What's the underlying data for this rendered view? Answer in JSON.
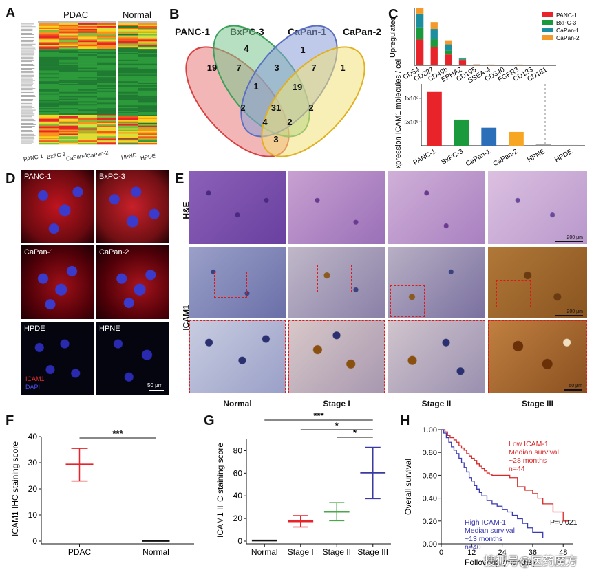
{
  "panels": {
    "A": {
      "letter": "A",
      "group_labels": [
        "PDAC",
        "Normal"
      ],
      "cell_lines": [
        "PANC-1",
        "BxPC-3",
        "CaPan-1",
        "CaPan-2",
        "HPNE",
        "HPDE"
      ]
    },
    "B": {
      "letter": "B",
      "sets": [
        "PANC-1",
        "BxPC-3",
        "CaPan-1",
        "CaPan-2"
      ],
      "set_colors": [
        "#e87a7a",
        "#7cc48e",
        "#8a9fd8",
        "#f2e27a"
      ],
      "region_counts": [
        "19",
        "4",
        "1",
        "1",
        "7",
        "3",
        "7",
        "1",
        "19",
        "2",
        "31",
        "2",
        "4",
        "2",
        "3"
      ]
    },
    "C": {
      "letter": "C",
      "chart_data": [
        {
          "type": "bar",
          "stacked": true,
          "ylabel": "Upregulated",
          "categories": [
            "CD54",
            "CD227",
            "CD49b",
            "EPHA2",
            "CD195",
            "SSEA-4",
            "CD340",
            "FGFR3",
            "CD133",
            "CD181"
          ],
          "series": [
            {
              "name": "PANC-1",
              "color": "#e8232a",
              "values": [
                95,
                66,
                40,
                20,
                1,
                0,
                1,
                0,
                0,
                0
              ]
            },
            {
              "name": "BxPC-3",
              "color": "#1a9a3c",
              "values": [
                45,
                30,
                15,
                2,
                1,
                1,
                0,
                1,
                1,
                0
              ]
            },
            {
              "name": "CaPan-1",
              "color": "#1b8fa0",
              "values": [
                50,
                38,
                22,
                3,
                1,
                1,
                1,
                1,
                1,
                0
              ]
            },
            {
              "name": "CaPan-2",
              "color": "#f39a2b",
              "values": [
                20,
                25,
                15,
                3,
                1,
                1,
                0,
                1,
                0,
                0
              ]
            }
          ],
          "legend_position": "top-right"
        },
        {
          "type": "bar",
          "ylabel": "Expression ICAM1 molecules / cell",
          "categories": [
            "PANC-1",
            "BxPC-3",
            "CaPan-1",
            "CaPan-2",
            "HPNE",
            "HPDE"
          ],
          "values": [
            1130000,
            550000,
            380000,
            290000,
            25000,
            15000
          ],
          "colors": [
            "#e8232a",
            "#1a9a3c",
            "#2b6fb8",
            "#f6a623",
            "#8c8c8c",
            "#8c8c8c"
          ],
          "yticks": [
            "5x10⁵",
            "1x10⁶"
          ],
          "ylim": [
            0,
            1300000
          ]
        }
      ]
    },
    "D": {
      "letter": "D",
      "images": [
        "PANC-1",
        "BxPC-3",
        "CaPan-1",
        "CaPan-2",
        "HPDE",
        "HPNE"
      ],
      "legend_icam": "ICAM1",
      "legend_dapi": "DAPI",
      "scale": "50 μm"
    },
    "E": {
      "letter": "E",
      "row_labels": [
        "H&E",
        "ICAM1"
      ],
      "stages": [
        "Normal",
        "Stage I",
        "Stage II",
        "Stage III"
      ],
      "scale_he": "200 μm",
      "scale_icam": "200 μm",
      "scale_zoom": "50 μm"
    },
    "F": {
      "letter": "F",
      "chart_data": {
        "type": "scatter",
        "ylabel": "ICAM1 IHC staining score",
        "categories": [
          "PDAC",
          "Normal"
        ],
        "mean": [
          29.3,
          0.1
        ],
        "upper": [
          35.5,
          0.1
        ],
        "lower": [
          23.0,
          0.1
        ],
        "colors": [
          "#e8232a",
          "#111111"
        ],
        "ylim": [
          0,
          40
        ],
        "yticks": [
          0,
          10,
          20,
          30,
          40
        ],
        "significance": "***"
      }
    },
    "G": {
      "letter": "G",
      "chart_data": {
        "type": "scatter",
        "ylabel": "ICAM1 IHC staining score",
        "categories": [
          "Normal",
          "Stage I",
          "Stage II",
          "Stage III"
        ],
        "mean": [
          0.5,
          17.5,
          26.0,
          60.5
        ],
        "upper": [
          0.5,
          22.5,
          34.0,
          83.0
        ],
        "lower": [
          0.5,
          12.5,
          18.0,
          37.5
        ],
        "colors": [
          "#111111",
          "#e8232a",
          "#4aa84a",
          "#3a3aa0"
        ],
        "ylim": [
          0,
          90
        ],
        "yticks": [
          0,
          20,
          40,
          60,
          80
        ],
        "significance": [
          "***",
          "*",
          "*"
        ]
      }
    },
    "H": {
      "letter": "H",
      "chart_data": {
        "type": "line",
        "ylabel": "Overall survival",
        "xlabel": "Follow-up (months)",
        "xlim": [
          0,
          52
        ],
        "ylim": [
          0,
          1.0
        ],
        "xticks": [
          0,
          12,
          24,
          36,
          48
        ],
        "yticks": [
          "0.00",
          "0.20",
          "0.40",
          "0.60",
          "0.80",
          "1.00"
        ],
        "series": [
          {
            "name": "Low ICAM-1",
            "color": "#d62a2a",
            "x": [
              0,
              1.5,
              2.5,
              3.5,
              5,
              6,
              7,
              8,
              9,
              10,
              11,
              12,
              13,
              14,
              15,
              16,
              17,
              18,
              19,
              20,
              22,
              24,
              27,
              30,
              33,
              36,
              38,
              40,
              44,
              48,
              50
            ],
            "y": [
              1.0,
              0.98,
              0.95,
              0.93,
              0.91,
              0.89,
              0.86,
              0.84,
              0.82,
              0.79,
              0.77,
              0.75,
              0.73,
              0.7,
              0.68,
              0.66,
              0.64,
              0.62,
              0.61,
              0.6,
              0.6,
              0.6,
              0.58,
              0.5,
              0.47,
              0.44,
              0.4,
              0.35,
              0.28,
              0.2,
              0.2
            ]
          },
          {
            "name": "High ICAM-1",
            "color": "#3a3ab0",
            "x": [
              0,
              1,
              2,
              3,
              4,
              5,
              6,
              7,
              8,
              9,
              10,
              11,
              12,
              13,
              14,
              15,
              16,
              18,
              20,
              22,
              24,
              26,
              28,
              30,
              32,
              34,
              36,
              40
            ],
            "y": [
              1.0,
              0.97,
              0.93,
              0.89,
              0.85,
              0.82,
              0.79,
              0.75,
              0.71,
              0.67,
              0.63,
              0.58,
              0.55,
              0.51,
              0.48,
              0.45,
              0.42,
              0.38,
              0.35,
              0.33,
              0.3,
              0.28,
              0.25,
              0.22,
              0.18,
              0.14,
              0.1,
              0.05
            ]
          }
        ],
        "annotations": {
          "low": [
            "Low ICAM-1",
            "Median survival",
            "~28 months",
            "n=44"
          ],
          "high": [
            "High ICAM-1",
            "Median survival",
            "~13 months",
            "n=40"
          ],
          "pvalue": "P=0.021"
        }
      }
    }
  },
  "watermark": "搜狐号@医药魔方"
}
